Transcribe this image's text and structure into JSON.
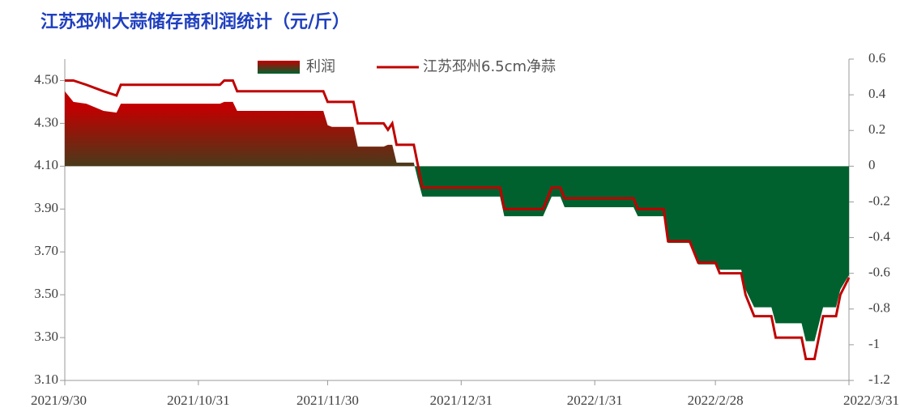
{
  "chart_data": {
    "type": "line",
    "title": "江苏邳州大蒜储存商利润统计（元/斤）",
    "x": [
      "2021/9/30",
      "2021/10/2",
      "2021/10/5",
      "2021/10/9",
      "2021/10/12",
      "2021/10/13",
      "2021/11/5",
      "2021/11/6",
      "2021/11/8",
      "2021/11/9",
      "2021/11/29",
      "2021/11/30",
      "2021/12/1",
      "2021/12/6",
      "2021/12/7",
      "2021/12/13",
      "2021/12/14",
      "2021/12/15",
      "2021/12/16",
      "2021/12/20",
      "2021/12/21",
      "2021/12/22",
      "2022/1/9",
      "2022/1/10",
      "2022/1/19",
      "2022/1/21",
      "2022/1/23",
      "2022/1/24",
      "2022/2/9",
      "2022/2/10",
      "2022/2/16",
      "2022/2/17",
      "2022/2/22",
      "2022/2/24",
      "2022/2/28",
      "2022/3/1",
      "2022/3/6",
      "2022/3/7",
      "2022/3/9",
      "2022/3/13",
      "2022/3/14",
      "2022/3/20",
      "2022/3/21",
      "2022/3/23",
      "2022/3/25",
      "2022/3/28",
      "2022/3/29",
      "2022/3/31"
    ],
    "series": [
      {
        "name": "利润",
        "axis": "y2",
        "kind": "area",
        "color": "#c00000",
        "negative_color": "#00612e",
        "values": [
          0.42,
          0.36,
          0.35,
          0.31,
          0.3,
          0.35,
          0.35,
          0.36,
          0.36,
          0.31,
          0.31,
          0.23,
          0.22,
          0.22,
          0.11,
          0.11,
          0.12,
          0.12,
          0.02,
          0.02,
          -0.08,
          -0.17,
          -0.17,
          -0.28,
          -0.28,
          -0.17,
          -0.17,
          -0.23,
          -0.23,
          -0.28,
          -0.28,
          -0.43,
          -0.43,
          -0.55,
          -0.55,
          -0.58,
          -0.58,
          -0.69,
          -0.79,
          -0.79,
          -0.88,
          -0.88,
          -0.98,
          -0.98,
          -0.79,
          -0.79,
          -0.69,
          -0.61
        ]
      },
      {
        "name": "江苏邳州6.5cm净蒜",
        "kind": "line",
        "color": "#c00000",
        "values": [
          4.5,
          4.5,
          4.48,
          4.45,
          4.43,
          4.48,
          4.48,
          4.5,
          4.5,
          4.45,
          4.45,
          4.4,
          4.4,
          4.4,
          4.3,
          4.3,
          4.27,
          4.3,
          4.2,
          4.2,
          4.1,
          4.0,
          4.0,
          3.9,
          3.9,
          4.0,
          4.0,
          3.95,
          3.95,
          3.9,
          3.9,
          3.75,
          3.75,
          3.65,
          3.65,
          3.6,
          3.6,
          3.5,
          3.4,
          3.4,
          3.3,
          3.3,
          3.2,
          3.2,
          3.4,
          3.4,
          3.5,
          3.58
        ]
      }
    ],
    "xlim": [
      "2021/9/30",
      "2022/3/31"
    ],
    "xticks": [
      "2021/9/30",
      "2021/10/31",
      "2021/11/30",
      "2021/12/31",
      "2022/1/31",
      "2022/2/28",
      "2022/3/31"
    ],
    "ylim": [
      3.1,
      4.6
    ],
    "yticks": [
      {
        "value": 3.1,
        "label": "3.10"
      },
      {
        "value": 3.3,
        "label": "3.30"
      },
      {
        "value": 3.5,
        "label": "3.50"
      },
      {
        "value": 3.7,
        "label": "3.70"
      },
      {
        "value": 3.9,
        "label": "3.90"
      },
      {
        "value": 4.1,
        "label": "4.10"
      },
      {
        "value": 4.3,
        "label": "4.30"
      },
      {
        "value": 4.5,
        "label": "4.50"
      }
    ],
    "y2lim": [
      -1.2,
      0.6
    ],
    "y2ticks": [
      -1.2,
      -1,
      -0.8,
      -0.6,
      -0.4,
      -0.2,
      0,
      0.2,
      0.4,
      0.6
    ],
    "legend": "top"
  }
}
